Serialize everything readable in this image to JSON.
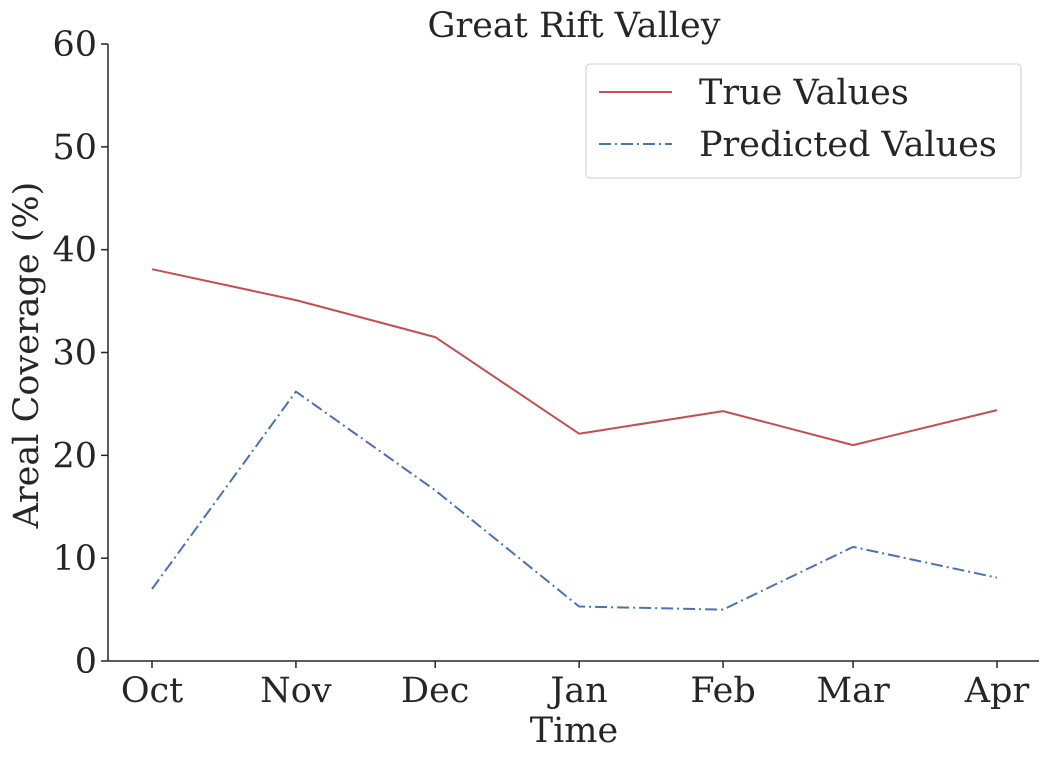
{
  "chart_data": {
    "type": "line",
    "title": "Great Rift Valley",
    "xlabel": "Time",
    "ylabel": "Areal Coverage (%)",
    "categories": [
      "Oct",
      "Nov",
      "Dec",
      "Jan",
      "Feb",
      "Mar",
      "Apr"
    ],
    "x": [
      "2014-10-01",
      "2014-11-01",
      "2014-12-01",
      "2015-01-01",
      "2015-02-01",
      "2015-03-01",
      "2015-04-01"
    ],
    "ylim": [
      0,
      60
    ],
    "yticks": [
      0,
      10,
      20,
      30,
      40,
      50,
      60
    ],
    "grid": false,
    "legend_position": "top-right",
    "series": [
      {
        "name": "True Values",
        "color": "#c44e52",
        "style": "solid",
        "values": [
          38.1,
          35.1,
          31.5,
          22.1,
          24.3,
          21.0,
          24.4
        ]
      },
      {
        "name": "Predicted Values",
        "color": "#4c72b0",
        "style": "dash-dot",
        "values": [
          7.0,
          26.2,
          16.6,
          5.3,
          5.0,
          11.1,
          8.1
        ]
      }
    ]
  }
}
